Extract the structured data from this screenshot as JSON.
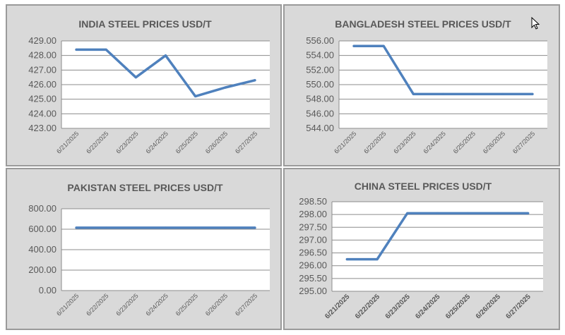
{
  "page": {
    "background": "#ffffff",
    "panel_background": "#d9d9d9",
    "line_color": "#4f81bd"
  },
  "chart_data": [
    {
      "type": "line",
      "title": "INDIA STEEL PRICES USD/T",
      "categories": [
        "6/21/2025",
        "6/22/2025",
        "6/23/2025",
        "6/24/2025",
        "6/25/2025",
        "6/26/2025",
        "6/27/2025"
      ],
      "values": [
        428.4,
        428.4,
        426.5,
        428.0,
        425.2,
        425.8,
        426.3
      ],
      "ylim": [
        423,
        429
      ],
      "yticks": [
        "423.00",
        "424.00",
        "425.00",
        "426.00",
        "427.00",
        "428.00",
        "429.00"
      ],
      "grid": true
    },
    {
      "type": "line",
      "title": "BANGLADESH STEEL PRICES USD/T",
      "categories": [
        "6/21/2025",
        "6/22/2025",
        "6/23/2025",
        "6/24/2025",
        "6/25/2025",
        "6/26/2025",
        "6/27/2025"
      ],
      "values": [
        555.3,
        555.3,
        548.7,
        548.7,
        548.7,
        548.7,
        548.7
      ],
      "ylim": [
        544,
        556
      ],
      "yticks": [
        "544.00",
        "546.00",
        "548.00",
        "550.00",
        "552.00",
        "554.00",
        "556.00"
      ],
      "grid": true
    },
    {
      "type": "line",
      "title": "PAKISTAN STEEL PRICES USD/T",
      "categories": [
        "6/21/2025",
        "6/22/2025",
        "6/23/2025",
        "6/24/2025",
        "6/25/2025",
        "6/26/2025",
        "6/27/2025"
      ],
      "values": [
        615,
        615,
        615,
        615,
        615,
        615,
        615
      ],
      "ylim": [
        0,
        800
      ],
      "yticks": [
        "0.00",
        "200.00",
        "400.00",
        "600.00",
        "800.00"
      ],
      "grid": true
    },
    {
      "type": "line",
      "title": "CHINA STEEL PRICES USD/T",
      "categories": [
        "6/21/2025",
        "6/22/2025",
        "6/23/2025",
        "6/24/2025",
        "6/25/2025",
        "6/26/2025",
        "6/27/2025"
      ],
      "values": [
        296.25,
        296.25,
        298.05,
        298.05,
        298.05,
        298.05,
        298.05
      ],
      "ylim": [
        295,
        298.5
      ],
      "yticks": [
        "295.00",
        "295.50",
        "296.00",
        "296.50",
        "297.00",
        "297.50",
        "298.00",
        "298.50"
      ],
      "grid": true
    }
  ]
}
